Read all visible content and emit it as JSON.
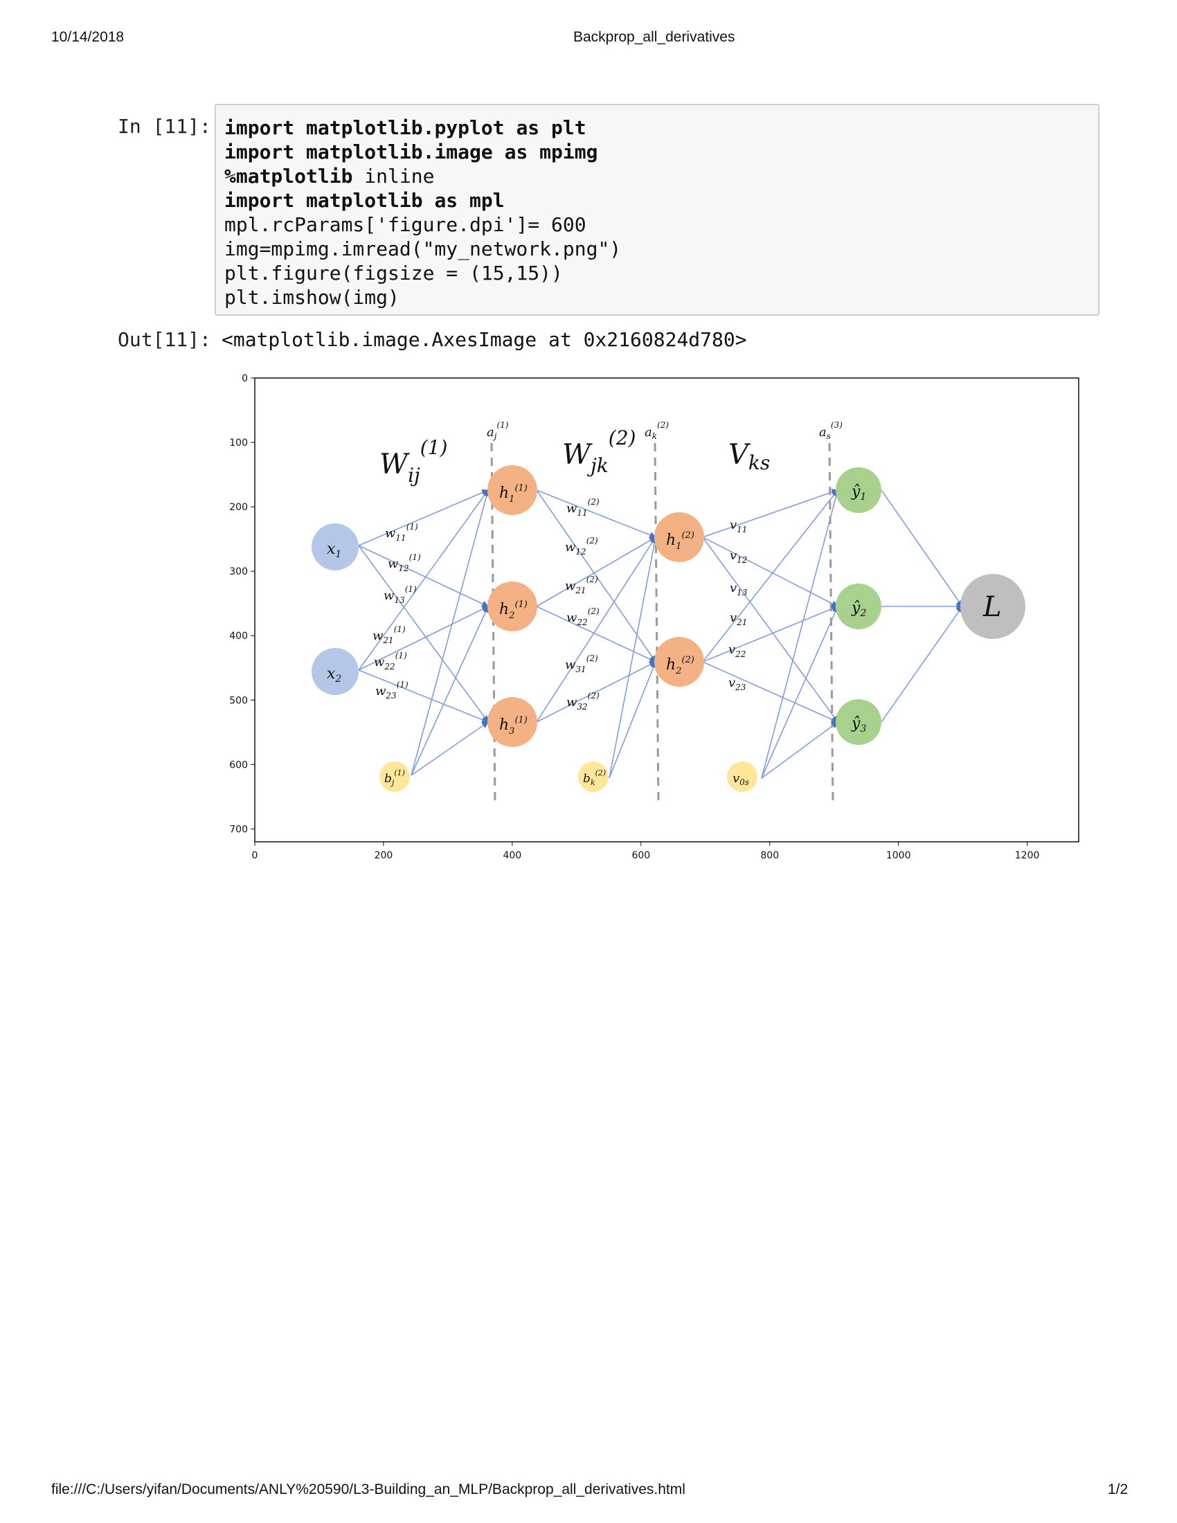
{
  "header": {
    "date": "10/14/2018",
    "title": "Backprop_all_derivatives"
  },
  "cell_in": {
    "prompt": "In [11]:",
    "lines": [
      {
        "kw": "import",
        "rest": " matplotlib.pyplot as plt",
        "bold_all": true
      },
      {
        "kw": "import",
        "rest": " matplotlib.image as mpimg",
        "bold_all": true
      },
      {
        "kw": "%matplotlib",
        "rest": " inline",
        "bold_all": false
      },
      {
        "kw": "import",
        "rest": " matplotlib as mpl",
        "bold_all": true
      },
      {
        "kw": "",
        "rest": "mpl.rcParams['figure.dpi']= 600",
        "bold_all": false
      },
      {
        "kw": "",
        "rest": "img=mpimg.imread(\"my_network.png\")",
        "bold_all": false
      },
      {
        "kw": "",
        "rest": "plt.figure(figsize = (15,15))",
        "bold_all": false
      },
      {
        "kw": "",
        "rest": "plt.imshow(img)",
        "bold_all": false
      }
    ]
  },
  "cell_out": {
    "prompt": "Out[11]:",
    "text": "<matplotlib.image.AxesImage at 0x2160824d780>"
  },
  "figure": {
    "x_ticks": [
      "0",
      "200",
      "400",
      "600",
      "800",
      "1000",
      "1200"
    ],
    "y_ticks": [
      "0",
      "100",
      "200",
      "300",
      "400",
      "500",
      "600",
      "700"
    ],
    "colors": {
      "input": "#b4c7e7",
      "hidden": "#f4b183",
      "bias": "#ffe699",
      "output": "#a9d18e",
      "loss": "#bfbfbf",
      "edge": "#7f9fdc",
      "dashed": "#9a9a9a"
    }
  },
  "footer": {
    "path": "file:///C:/Users/yifan/Documents/ANLY%20590/L3-Building_an_MLP/Backprop_all_derivatives.html",
    "page": "1/2"
  }
}
